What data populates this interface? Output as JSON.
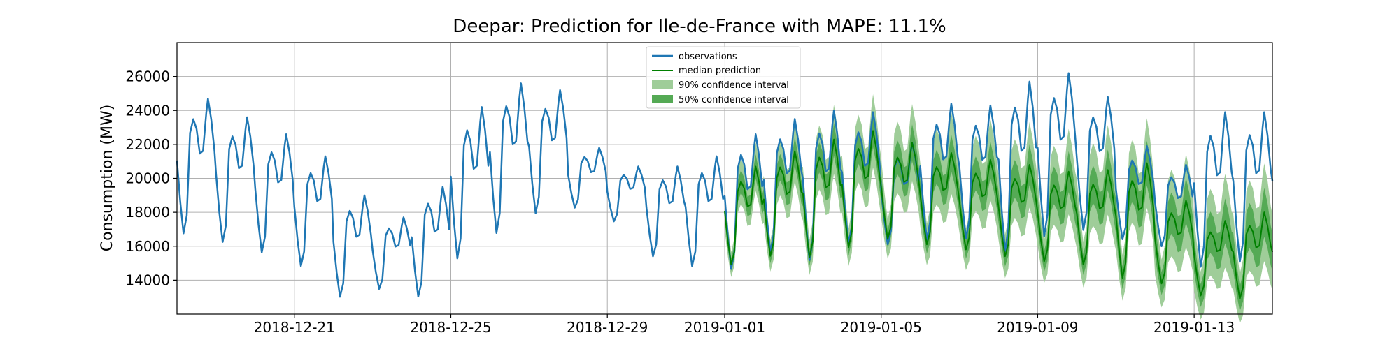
{
  "colors": {
    "observations": "#1f77b4",
    "median": "#008000",
    "ci90": "#9fcd99",
    "ci50": "#55aa55",
    "grid": "#b0b0b0"
  },
  "chart_data": {
    "type": "line",
    "title": "Deepar: Prediction for Ile-de-France with MAPE: 11.1%",
    "xlabel": "",
    "ylabel": "Consumption (MW)",
    "ylim": [
      12000,
      28000
    ],
    "xlim": [
      "2018-12-18T00:00",
      "2019-01-15T00:00"
    ],
    "y_ticks": [
      14000,
      16000,
      18000,
      20000,
      22000,
      24000,
      26000
    ],
    "y_tick_labels": [
      "14000",
      "16000",
      "18000",
      "20000",
      "22000",
      "24000",
      "26000"
    ],
    "x_ticks": [
      "2018-12-21",
      "2018-12-25",
      "2018-12-29",
      "2019-01-01",
      "2019-01-05",
      "2019-01-09",
      "2019-01-13"
    ],
    "x_tick_labels": [
      "2018-12-21",
      "2018-12-25",
      "2018-12-29",
      "2019-01-01",
      "2019-01-05",
      "2019-01-09",
      "2019-01-13"
    ],
    "grid": true,
    "legend": {
      "position": "top-center",
      "entries": [
        "observations",
        "median prediction",
        "90% confidence interval",
        "50% confidence interval"
      ]
    },
    "observations": {
      "name": "observations",
      "day_start": "2018-12-18",
      "daily_min": [
        16600,
        16100,
        15500,
        14700,
        12900,
        13400,
        12900,
        15100,
        16600,
        17800,
        18200,
        17400,
        15300,
        14700,
        14500,
        15500,
        15000,
        16000,
        16000,
        16200,
        16300,
        15500,
        16400,
        16800,
        16300,
        15900,
        14600,
        14900
      ],
      "daily_max": [
        24700,
        23600,
        22600,
        21300,
        19000,
        17700,
        19500,
        24200,
        25600,
        25200,
        21800,
        20700,
        20700,
        21300,
        22600,
        23500,
        24000,
        23900,
        22100,
        24400,
        24300,
        25700,
        26200,
        24800,
        21900,
        20800,
        23900,
        23900
      ]
    },
    "forecast": {
      "start": "2019-01-01T00:00",
      "days": [
        "2019-01-01",
        "2019-01-02",
        "2019-01-03",
        "2019-01-04",
        "2019-01-05",
        "2019-01-06",
        "2019-01-07",
        "2019-01-08",
        "2019-01-09",
        "2019-01-10",
        "2019-01-11",
        "2019-01-12",
        "2019-01-13",
        "2019-01-14"
      ],
      "median_min": [
        14800,
        15300,
        15200,
        15800,
        16300,
        16000,
        15700,
        15300,
        15000,
        14800,
        14000,
        13700,
        13000,
        12800
      ],
      "median_max": [
        20700,
        21600,
        22300,
        22800,
        22100,
        21500,
        21100,
        20800,
        20400,
        20500,
        20900,
        18700,
        17500,
        18000
      ],
      "ci50_halfwidth": [
        600,
        700,
        800,
        800,
        900,
        900,
        900,
        1000,
        1000,
        1000,
        1100,
        1100,
        1100,
        1200
      ],
      "ci90_halfwidth": [
        1200,
        1500,
        1700,
        1800,
        1900,
        2000,
        2000,
        2100,
        2100,
        2200,
        2200,
        2300,
        2300,
        2400
      ]
    }
  }
}
